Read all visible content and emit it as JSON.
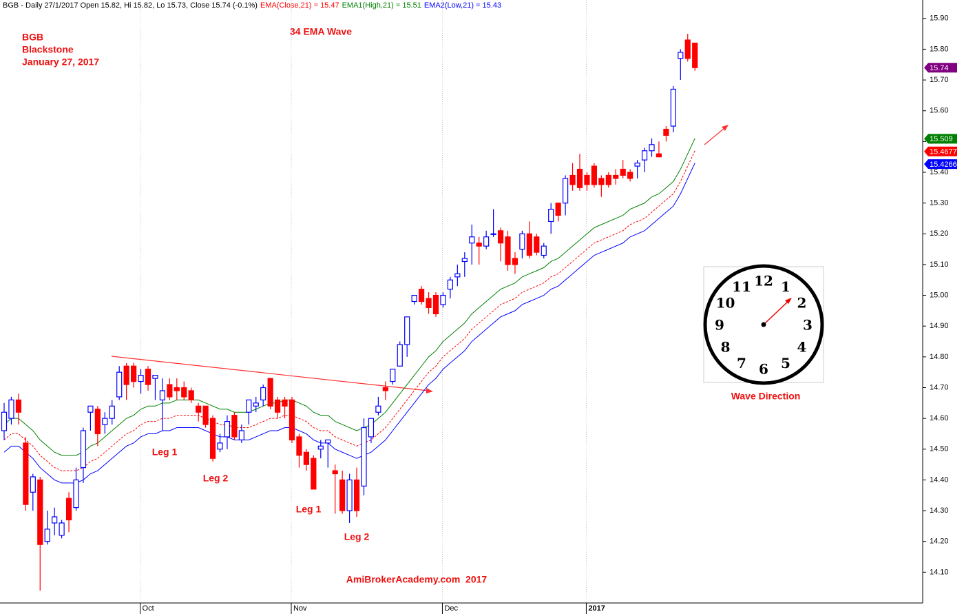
{
  "chart_data": {
    "type": "candlestick",
    "header": [
      "BGB - Daily 27/1/2017 Open 15.82, Hi 15.82, Lo 15.73, Close 15.74 (-0.1%)"
    ],
    "annotations": [
      "BGB",
      "Blackstone",
      "January 27, 2017",
      "34 EMA Wave",
      "Leg 1",
      "Leg 2",
      "Leg 1",
      "Leg 2",
      "AmiBrokerAcademy.com  2017",
      "Wave Direction"
    ],
    "clock_numerals": [
      "12",
      "1",
      "2",
      "3",
      "4",
      "5",
      "6",
      "7",
      "8",
      "9",
      "10",
      "11"
    ],
    "categories": [
      null,
      null,
      null,
      null,
      null,
      null,
      null,
      null,
      null,
      null,
      null,
      null,
      null,
      null,
      null,
      null,
      null,
      null,
      null,
      "Oct",
      null,
      null,
      null,
      null,
      null,
      null,
      null,
      null,
      null,
      null,
      null,
      null,
      null,
      null,
      null,
      null,
      null,
      null,
      null,
      null,
      "Nov",
      null,
      null,
      null,
      null,
      null,
      null,
      null,
      null,
      null,
      null,
      null,
      null,
      null,
      null,
      null,
      null,
      null,
      null,
      null,
      null,
      "Dec",
      null,
      null,
      null,
      null,
      null,
      null,
      null,
      null,
      null,
      null,
      null,
      null,
      null,
      null,
      null,
      null,
      null,
      null,
      null,
      "2017",
      null,
      null,
      null,
      null,
      null,
      null,
      null,
      null,
      null,
      null,
      null,
      null,
      null,
      null,
      null
    ],
    "open": [
      14.56,
      14.6,
      14.66,
      14.52,
      14.36,
      14.4,
      14.2,
      14.26,
      14.22,
      14.34,
      14.31,
      14.44,
      14.62,
      14.63,
      14.58,
      14.6,
      14.67,
      14.77,
      14.77,
      14.72,
      14.76,
      14.73,
      14.66,
      14.71,
      14.7,
      14.7,
      14.69,
      14.64,
      14.64,
      14.6,
      14.5,
      14.54,
      14.61,
      14.53,
      14.62,
      14.64,
      14.66,
      14.73,
      14.66,
      14.66,
      14.66,
      14.54,
      14.49,
      14.47,
      14.5,
      14.52,
      14.43,
      14.4,
      14.3,
      14.4,
      14.38,
      14.54,
      14.62,
      14.7,
      14.72,
      14.77,
      14.84,
      14.98,
      15.02,
      14.99,
      15.0,
      14.97,
      15.02,
      15.06,
      15.11,
      15.17,
      15.17,
      15.16,
      15.2,
      15.21,
      15.19,
      15.12,
      15.15,
      15.2,
      15.19,
      15.13,
      15.24,
      15.3,
      15.3,
      15.39,
      15.41,
      15.39,
      15.42,
      15.38,
      15.39,
      15.39,
      15.41,
      15.4,
      15.42,
      15.44,
      15.47,
      15.46,
      15.54,
      15.55,
      15.77,
      15.83,
      15.82
    ],
    "high": [
      14.65,
      14.67,
      14.68,
      14.54,
      14.42,
      14.41,
      14.3,
      14.31,
      14.27,
      14.36,
      14.44,
      14.57,
      14.64,
      14.64,
      14.62,
      14.66,
      14.77,
      14.78,
      14.78,
      14.76,
      14.77,
      14.74,
      14.73,
      14.73,
      14.73,
      14.72,
      14.7,
      14.65,
      14.64,
      14.61,
      14.55,
      14.61,
      14.62,
      14.58,
      14.66,
      14.67,
      14.71,
      14.73,
      14.67,
      14.67,
      14.67,
      14.55,
      14.5,
      14.48,
      14.53,
      14.53,
      14.45,
      14.43,
      14.42,
      14.44,
      14.6,
      14.6,
      14.67,
      14.72,
      14.76,
      14.85,
      14.93,
      15.0,
      15.03,
      15.01,
      15.01,
      15.01,
      15.06,
      15.1,
      15.14,
      15.23,
      15.19,
      15.21,
      15.28,
      15.22,
      15.21,
      15.14,
      15.21,
      15.24,
      15.2,
      15.17,
      15.3,
      15.3,
      15.39,
      15.43,
      15.46,
      15.4,
      15.43,
      15.39,
      15.4,
      15.41,
      15.44,
      15.41,
      15.44,
      15.48,
      15.51,
      15.5,
      15.55,
      15.68,
      15.8,
      15.85,
      15.82
    ],
    "low": [
      14.53,
      14.58,
      14.58,
      14.3,
      14.3,
      14.04,
      14.19,
      14.22,
      14.21,
      14.23,
      14.3,
      14.39,
      14.56,
      14.51,
      14.55,
      14.58,
      14.66,
      14.66,
      14.7,
      14.68,
      14.69,
      14.66,
      14.56,
      14.66,
      14.66,
      14.66,
      14.65,
      14.59,
      14.57,
      14.46,
      14.49,
      14.5,
      14.53,
      14.52,
      14.58,
      14.62,
      14.64,
      14.63,
      14.6,
      14.6,
      14.52,
      14.44,
      14.43,
      14.37,
      14.47,
      14.44,
      14.29,
      14.29,
      14.26,
      14.28,
      14.35,
      14.52,
      14.61,
      14.66,
      14.71,
      14.77,
      14.8,
      14.97,
      14.97,
      14.94,
      14.93,
      14.96,
      14.99,
      15.03,
      15.06,
      15.1,
      15.1,
      15.15,
      15.19,
      15.11,
      15.08,
      15.07,
      15.12,
      15.12,
      15.13,
      15.12,
      15.2,
      15.24,
      15.26,
      15.34,
      15.34,
      15.34,
      15.35,
      15.32,
      15.35,
      15.36,
      15.38,
      15.37,
      15.38,
      15.4,
      15.45,
      15.45,
      15.5,
      15.53,
      15.7,
      15.76,
      15.73
    ],
    "close": [
      14.62,
      14.66,
      14.62,
      14.32,
      14.41,
      14.19,
      14.24,
      14.28,
      14.26,
      14.27,
      14.4,
      14.56,
      14.64,
      14.55,
      14.6,
      14.64,
      14.75,
      14.71,
      14.72,
      14.74,
      14.71,
      14.74,
      14.69,
      14.67,
      14.69,
      14.67,
      14.66,
      14.62,
      14.58,
      14.47,
      14.52,
      14.59,
      14.54,
      14.56,
      14.66,
      14.65,
      14.7,
      14.64,
      14.62,
      14.64,
      14.53,
      14.48,
      14.45,
      14.37,
      14.51,
      14.53,
      14.42,
      14.3,
      14.4,
      14.3,
      14.57,
      14.6,
      14.64,
      14.69,
      14.76,
      14.84,
      14.93,
      15.0,
      14.98,
      14.96,
      14.94,
      15.0,
      15.05,
      15.07,
      15.12,
      15.19,
      15.16,
      15.19,
      15.2,
      15.17,
      15.1,
      15.1,
      15.2,
      15.13,
      15.14,
      15.16,
      15.28,
      15.26,
      15.38,
      15.36,
      15.35,
      15.36,
      15.36,
      15.36,
      15.36,
      15.38,
      15.39,
      15.38,
      15.43,
      15.47,
      15.49,
      15.45,
      15.52,
      15.67,
      15.79,
      15.77,
      15.74
    ],
    "up_color": "#0000ff",
    "down_color": "#ff0000",
    "series": [
      {
        "name": "EMA(Close,21) = 15.47",
        "color": "#ff0000",
        "dashed": true,
        "values": [
          14.53,
          14.55,
          14.55,
          14.53,
          14.51,
          14.48,
          14.46,
          14.44,
          14.43,
          14.43,
          14.43,
          14.44,
          14.46,
          14.47,
          14.49,
          14.51,
          14.53,
          14.55,
          14.56,
          14.58,
          14.59,
          14.59,
          14.6,
          14.6,
          14.61,
          14.61,
          14.61,
          14.61,
          14.6,
          14.59,
          14.58,
          14.58,
          14.57,
          14.57,
          14.57,
          14.58,
          14.59,
          14.6,
          14.6,
          14.61,
          14.61,
          14.6,
          14.59,
          14.57,
          14.56,
          14.56,
          14.54,
          14.53,
          14.52,
          14.51,
          14.52,
          14.53,
          14.55,
          14.57,
          14.6,
          14.63,
          14.66,
          14.69,
          14.72,
          14.75,
          14.77,
          14.8,
          14.82,
          14.84,
          14.86,
          14.89,
          14.91,
          14.93,
          14.95,
          14.97,
          14.98,
          14.99,
          15.01,
          15.02,
          15.03,
          15.04,
          15.06,
          15.07,
          15.09,
          15.11,
          15.13,
          15.15,
          15.17,
          15.18,
          15.19,
          15.2,
          15.21,
          15.23,
          15.24,
          15.25,
          15.27,
          15.29,
          15.31,
          15.33,
          15.37,
          15.42,
          15.47
        ]
      },
      {
        "name": "EMA1(High,21) = 15.51",
        "color": "#008000",
        "dashed": false,
        "values": [
          14.58,
          14.6,
          14.6,
          14.58,
          14.56,
          14.53,
          14.51,
          14.49,
          14.48,
          14.48,
          14.48,
          14.49,
          14.51,
          14.52,
          14.54,
          14.56,
          14.58,
          14.6,
          14.61,
          14.63,
          14.64,
          14.64,
          14.65,
          14.65,
          14.66,
          14.66,
          14.66,
          14.66,
          14.65,
          14.64,
          14.63,
          14.63,
          14.62,
          14.62,
          14.62,
          14.63,
          14.64,
          14.65,
          14.65,
          14.66,
          14.66,
          14.65,
          14.64,
          14.62,
          14.61,
          14.61,
          14.59,
          14.58,
          14.57,
          14.56,
          14.57,
          14.58,
          14.6,
          14.62,
          14.65,
          14.68,
          14.71,
          14.74,
          14.77,
          14.8,
          14.82,
          14.85,
          14.87,
          14.89,
          14.91,
          14.94,
          14.96,
          14.98,
          15.0,
          15.02,
          15.03,
          15.04,
          15.06,
          15.07,
          15.08,
          15.09,
          15.11,
          15.12,
          15.14,
          15.16,
          15.18,
          15.2,
          15.22,
          15.23,
          15.24,
          15.25,
          15.26,
          15.28,
          15.29,
          15.3,
          15.32,
          15.33,
          15.35,
          15.37,
          15.41,
          15.46,
          15.51
        ]
      },
      {
        "name": "EMA2(Low,21) = 15.43",
        "color": "#0000ff",
        "dashed": false,
        "values": [
          14.49,
          14.51,
          14.51,
          14.49,
          14.47,
          14.44,
          14.42,
          14.4,
          14.39,
          14.39,
          14.39,
          14.4,
          14.42,
          14.43,
          14.45,
          14.47,
          14.49,
          14.51,
          14.52,
          14.54,
          14.55,
          14.55,
          14.56,
          14.56,
          14.57,
          14.57,
          14.57,
          14.57,
          14.56,
          14.55,
          14.54,
          14.54,
          14.53,
          14.53,
          14.53,
          14.54,
          14.55,
          14.56,
          14.56,
          14.57,
          14.57,
          14.56,
          14.55,
          14.53,
          14.52,
          14.52,
          14.5,
          14.49,
          14.48,
          14.47,
          14.48,
          14.49,
          14.51,
          14.53,
          14.56,
          14.59,
          14.62,
          14.65,
          14.68,
          14.71,
          14.73,
          14.76,
          14.78,
          14.8,
          14.82,
          14.85,
          14.87,
          14.89,
          14.91,
          14.93,
          14.94,
          14.95,
          14.97,
          14.98,
          14.99,
          15.0,
          15.02,
          15.03,
          15.05,
          15.07,
          15.09,
          15.11,
          15.13,
          15.14,
          15.15,
          15.16,
          15.17,
          15.19,
          15.2,
          15.21,
          15.23,
          15.25,
          15.27,
          15.29,
          15.33,
          15.38,
          15.43
        ]
      }
    ],
    "price_tags": [
      {
        "value": 15.74,
        "color": "#800080"
      },
      {
        "value": 15.509,
        "color": "#008000"
      },
      {
        "value": 15.4677,
        "color": "#ff0000"
      },
      {
        "value": 15.4266,
        "color": "#0000ff"
      }
    ],
    "ylim": [
      14.0,
      15.96
    ],
    "yticks": [
      {
        "value": 14.1,
        "label": "14.10"
      },
      {
        "value": 14.2,
        "label": "14.20"
      },
      {
        "value": 14.3,
        "label": "14.30"
      },
      {
        "value": 14.4,
        "label": "14.40"
      },
      {
        "value": 14.5,
        "label": "14.50"
      },
      {
        "value": 14.6,
        "label": "14.60"
      },
      {
        "value": 14.7,
        "label": "14.70"
      },
      {
        "value": 14.8,
        "label": "14.80"
      },
      {
        "value": 14.9,
        "label": "14.90"
      },
      {
        "value": 15.0,
        "label": "15.00"
      },
      {
        "value": 15.1,
        "label": "15.10"
      },
      {
        "value": 15.2,
        "label": "15.20"
      },
      {
        "value": 15.3,
        "label": "15.30"
      },
      {
        "value": 15.4,
        "label": "15.40"
      },
      {
        "value": 15.5,
        "label": "15.50"
      },
      {
        "value": 15.6,
        "label": "15.60"
      },
      {
        "value": 15.7,
        "label": "15.70"
      },
      {
        "value": 15.8,
        "label": "15.80"
      },
      {
        "value": 15.9,
        "label": "15.90"
      }
    ]
  }
}
